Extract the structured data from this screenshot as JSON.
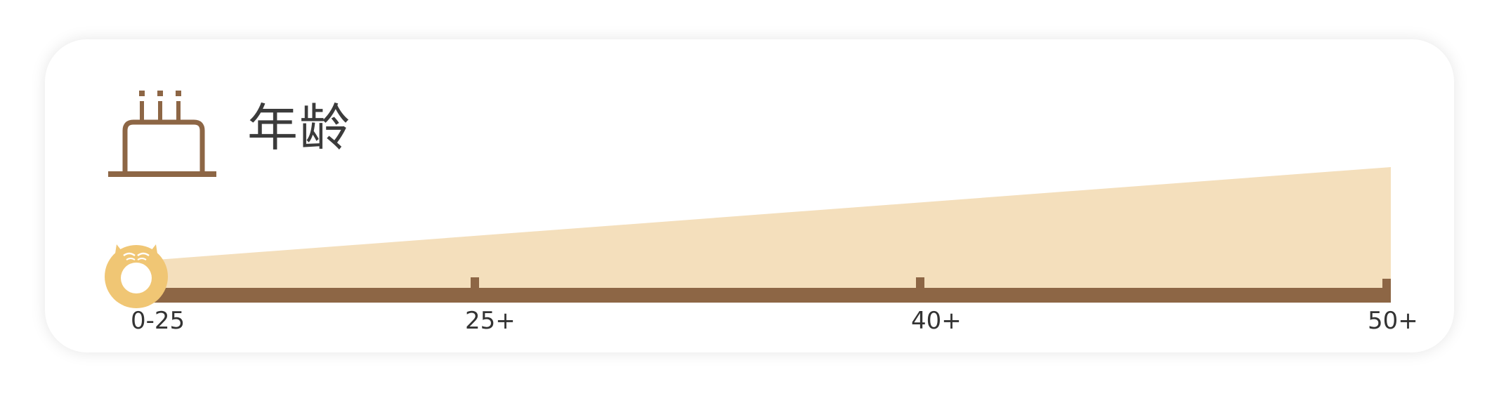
{
  "header": {
    "title": "年龄",
    "icon": "birthday-cake-icon"
  },
  "age_scale": {
    "labels": [
      "0-25",
      "25+",
      "40+",
      "50+"
    ],
    "selected_index": 0,
    "handle_icon": "owl-handle-icon"
  },
  "colors": {
    "track": "#8d6645",
    "wedge": "#f4dfbc",
    "handle": "#f0c674",
    "text": "#333333"
  }
}
